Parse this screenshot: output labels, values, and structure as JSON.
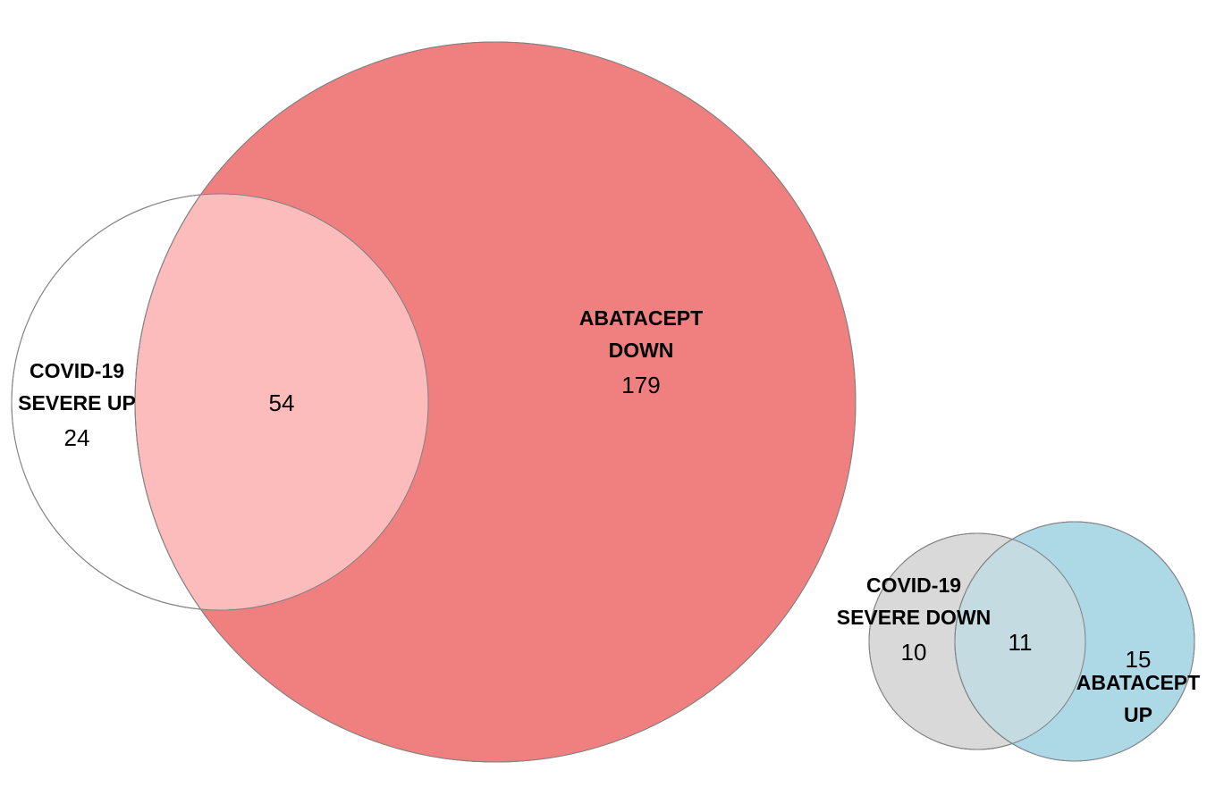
{
  "colors": {
    "background": "#ffffff",
    "outline": "#808080",
    "covid_severe_up_fill": "#ffffff",
    "abatacept_down_fill": "#f08080",
    "up_down_overlap_fill": "#fcbcbc",
    "covid_severe_down_fill": "#d9d9d9",
    "abatacept_up_fill": "#add8e6",
    "down_up_overlap_fill": "#c3dbe1"
  },
  "diagrams": [
    {
      "id": "up-vs-down",
      "sets": [
        {
          "id": "covid-severe-up",
          "label_lines": [
            "COVID-19",
            "SEVERE UP"
          ],
          "unique_count": "24"
        },
        {
          "id": "abatacept-down",
          "label_lines": [
            "ABATACEPT",
            "DOWN"
          ],
          "unique_count": "179"
        }
      ],
      "overlap_count": "54"
    },
    {
      "id": "down-vs-up",
      "sets": [
        {
          "id": "covid-severe-down",
          "label_lines": [
            "COVID-19",
            "SEVERE DOWN"
          ],
          "unique_count": "10"
        },
        {
          "id": "abatacept-up",
          "label_lines": [
            "ABATACEPT",
            "UP"
          ],
          "unique_count": "15"
        }
      ],
      "overlap_count": "11"
    }
  ]
}
